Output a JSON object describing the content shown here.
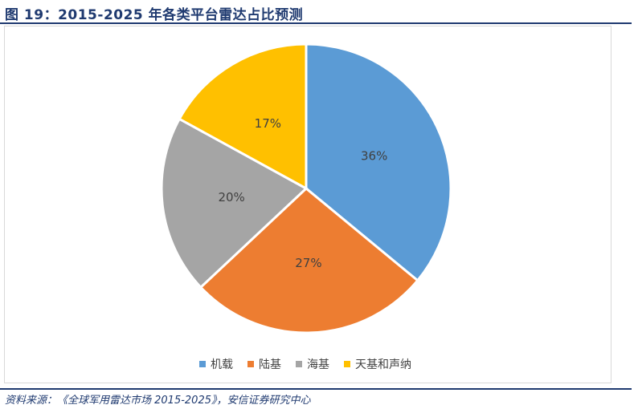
{
  "header": {
    "title": "图 19：2015-2025 年各类平台雷达占比预测"
  },
  "chart_data": {
    "type": "pie",
    "categories": [
      "机载",
      "陆基",
      "海基",
      "天基和声纳"
    ],
    "values": [
      36,
      27,
      20,
      17
    ],
    "labels": [
      "36%",
      "27%",
      "20%",
      "17%"
    ],
    "colors": [
      "#5B9BD5",
      "#ED7D31",
      "#A5A5A5",
      "#FFC000"
    ],
    "start": "12 o'clock",
    "direction": "clockwise",
    "legend_position": "bottom"
  },
  "footer": {
    "source": "资料来源：《全球军用雷达市场 2015-2025》，安信证券研究中心"
  }
}
